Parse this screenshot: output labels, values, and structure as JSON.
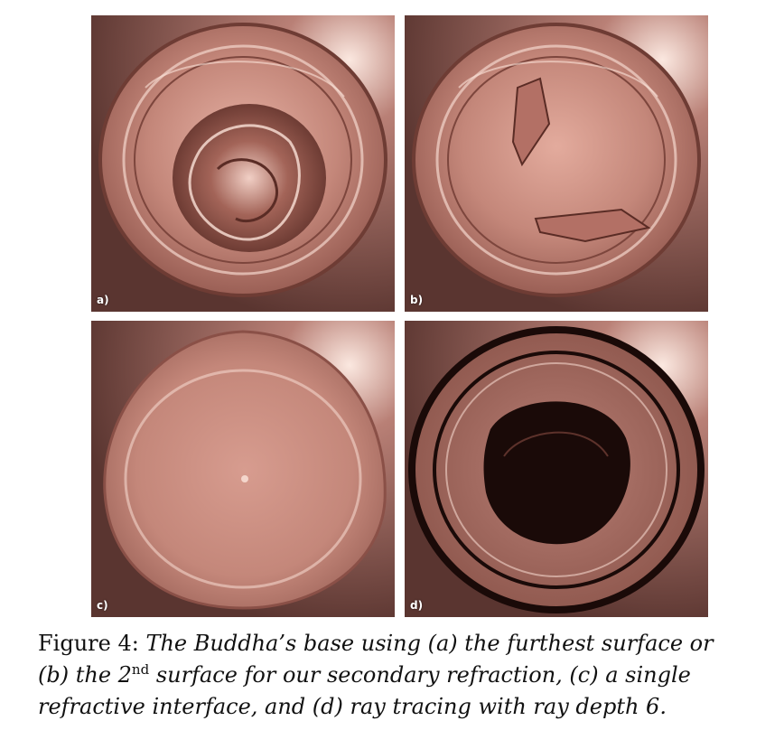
{
  "figure": {
    "panels": [
      {
        "id": "a",
        "label": "a)",
        "variant": "furthest-surface"
      },
      {
        "id": "b",
        "label": "b)",
        "variant": "second-surface"
      },
      {
        "id": "c",
        "label": "c)",
        "variant": "single-interface"
      },
      {
        "id": "d",
        "label": "d)",
        "variant": "ray-traced"
      }
    ],
    "colors": {
      "background": "#7a5048",
      "glass": "#c88a7c",
      "highlight": "#f4d6cc",
      "shadow": "#3a1c16",
      "dark_interior": "#1a0a08"
    },
    "caption": {
      "label": "Figure 4:",
      "line1": "The Buddha’s base using (a) the furthest surface or",
      "line2_pre": "(b) the 2",
      "line2_sup": "nd",
      "line2_post": " surface for our secondary refraction, (c) a single",
      "line3": "refractive interface, and (d) ray tracing with ray depth 6."
    }
  }
}
